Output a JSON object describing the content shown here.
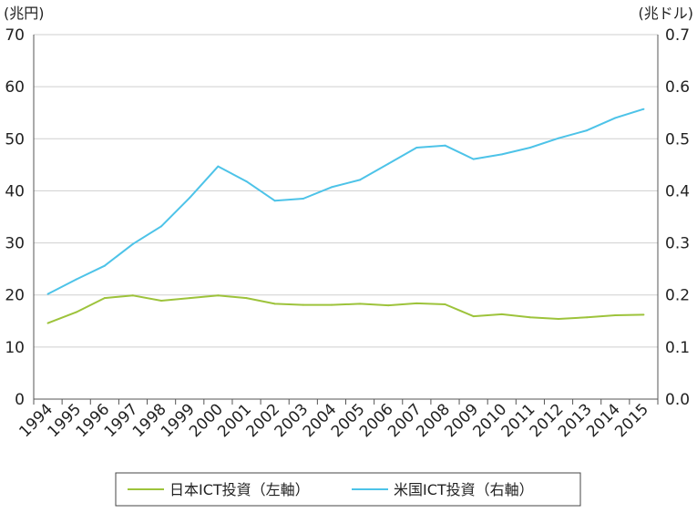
{
  "chart_data": {
    "type": "line",
    "categories": [
      "1994",
      "1995",
      "1996",
      "1997",
      "1998",
      "1999",
      "2000",
      "2001",
      "2002",
      "2003",
      "2004",
      "2005",
      "2006",
      "2007",
      "2008",
      "2009",
      "2010",
      "2011",
      "2012",
      "2013",
      "2014",
      "2015"
    ],
    "y_left": {
      "unit": "(兆円)",
      "ylim": [
        0,
        70
      ],
      "ticks": [
        "0",
        "10",
        "20",
        "30",
        "40",
        "50",
        "60",
        "70"
      ]
    },
    "y_right": {
      "unit": "(兆ドル)",
      "ylim": [
        0.0,
        0.7
      ],
      "ticks": [
        "0.0",
        "0.1",
        "0.2",
        "0.3",
        "0.4",
        "0.5",
        "0.6",
        "0.7"
      ]
    },
    "grid": true,
    "legend_position": "bottom",
    "series": [
      {
        "name": "日本ICT投資（左軸）",
        "axis": "left",
        "color": "#9dc33b",
        "values": [
          14.6,
          16.7,
          19.4,
          19.9,
          18.9,
          19.4,
          19.9,
          19.4,
          18.3,
          18.1,
          18.1,
          18.3,
          18.0,
          18.4,
          18.2,
          15.9,
          16.3,
          15.7,
          15.4,
          15.7,
          16.1,
          16.2
        ]
      },
      {
        "name": "米国ICT投資（右軸）",
        "axis": "right",
        "color": "#4dc3e8",
        "values": [
          0.202,
          0.23,
          0.256,
          0.298,
          0.332,
          0.387,
          0.447,
          0.418,
          0.381,
          0.385,
          0.407,
          0.421,
          0.452,
          0.483,
          0.487,
          0.461,
          0.47,
          0.483,
          0.501,
          0.516,
          0.54,
          0.557
        ]
      }
    ]
  }
}
